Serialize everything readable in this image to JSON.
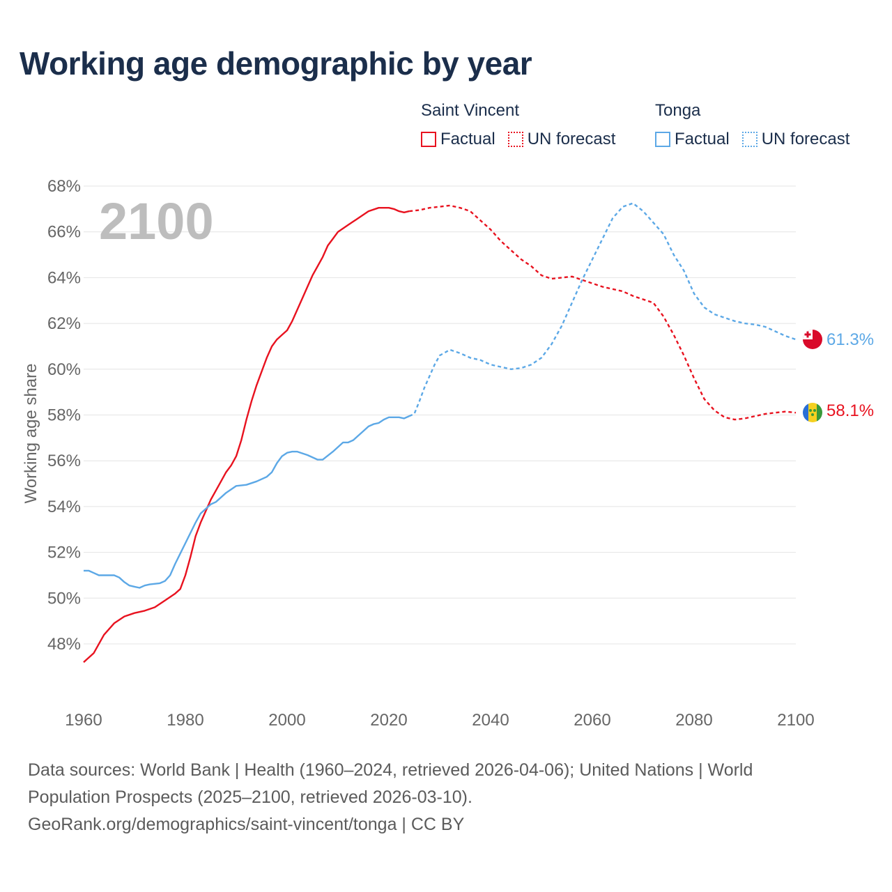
{
  "title": "Working age demographic by year",
  "legend": {
    "groups": [
      {
        "name": "Saint Vincent",
        "color": "#e8121f",
        "factual_label": "Factual",
        "forecast_label": "UN forecast"
      },
      {
        "name": "Tonga",
        "color": "#5ca8e6",
        "factual_label": "Factual",
        "forecast_label": "UN forecast"
      }
    ]
  },
  "year_display": "2100",
  "end_labels": {
    "tonga": "61.3%",
    "saint_vincent": "58.1%"
  },
  "sources": {
    "line1": "Data sources: World Bank | Health (1960–2024, retrieved 2026-04-06); United Nations | World",
    "line2": "Population Prospects (2025–2100, retrieved 2026-03-10).",
    "line3": "GeoRank.org/demographics/saint-vincent/tonga | CC BY"
  },
  "chart_data": {
    "type": "line",
    "title": "Working age demographic by year",
    "xlabel": "",
    "ylabel": "Working age share",
    "xlim": [
      1960,
      2100
    ],
    "ylim": [
      46.5,
      68
    ],
    "x_ticks": [
      1960,
      1980,
      2000,
      2020,
      2040,
      2060,
      2080,
      2100
    ],
    "y_ticks": [
      48,
      50,
      52,
      54,
      56,
      58,
      60,
      62,
      64,
      66,
      68
    ],
    "y_tick_labels": [
      "48%",
      "50%",
      "52%",
      "54%",
      "56%",
      "58%",
      "60%",
      "62%",
      "64%",
      "66%",
      "68%"
    ],
    "x_tick_labels": [
      "1960",
      "1980",
      "2000",
      "2020",
      "2040",
      "2060",
      "2080",
      "2100"
    ],
    "grid": true,
    "forecast_start": 2025,
    "series": [
      {
        "name": "Saint Vincent",
        "color": "#e8121f",
        "points": [
          [
            1960,
            47.2
          ],
          [
            1962,
            47.6
          ],
          [
            1964,
            48.4
          ],
          [
            1966,
            48.9
          ],
          [
            1968,
            49.2
          ],
          [
            1970,
            49.35
          ],
          [
            1972,
            49.45
          ],
          [
            1974,
            49.6
          ],
          [
            1976,
            49.9
          ],
          [
            1978,
            50.2
          ],
          [
            1979,
            50.4
          ],
          [
            1980,
            51.0
          ],
          [
            1981,
            51.8
          ],
          [
            1982,
            52.7
          ],
          [
            1983,
            53.3
          ],
          [
            1984,
            53.8
          ],
          [
            1985,
            54.3
          ],
          [
            1986,
            54.7
          ],
          [
            1987,
            55.1
          ],
          [
            1988,
            55.5
          ],
          [
            1989,
            55.8
          ],
          [
            1990,
            56.2
          ],
          [
            1991,
            56.9
          ],
          [
            1992,
            57.8
          ],
          [
            1993,
            58.6
          ],
          [
            1994,
            59.3
          ],
          [
            1995,
            59.9
          ],
          [
            1996,
            60.5
          ],
          [
            1997,
            61.0
          ],
          [
            1998,
            61.3
          ],
          [
            1999,
            61.5
          ],
          [
            2000,
            61.7
          ],
          [
            2001,
            62.1
          ],
          [
            2002,
            62.6
          ],
          [
            2003,
            63.1
          ],
          [
            2004,
            63.6
          ],
          [
            2005,
            64.1
          ],
          [
            2006,
            64.5
          ],
          [
            2007,
            64.9
          ],
          [
            2008,
            65.4
          ],
          [
            2009,
            65.7
          ],
          [
            2010,
            66.0
          ],
          [
            2012,
            66.3
          ],
          [
            2014,
            66.6
          ],
          [
            2016,
            66.9
          ],
          [
            2018,
            67.05
          ],
          [
            2020,
            67.05
          ],
          [
            2021,
            67.0
          ],
          [
            2022,
            66.9
          ],
          [
            2023,
            66.85
          ],
          [
            2024,
            66.9
          ],
          [
            2026,
            66.95
          ],
          [
            2028,
            67.05
          ],
          [
            2030,
            67.1
          ],
          [
            2032,
            67.15
          ],
          [
            2034,
            67.05
          ],
          [
            2036,
            66.9
          ],
          [
            2038,
            66.5
          ],
          [
            2040,
            66.1
          ],
          [
            2042,
            65.6
          ],
          [
            2044,
            65.2
          ],
          [
            2046,
            64.8
          ],
          [
            2048,
            64.5
          ],
          [
            2050,
            64.1
          ],
          [
            2052,
            63.95
          ],
          [
            2054,
            64.0
          ],
          [
            2056,
            64.05
          ],
          [
            2058,
            63.9
          ],
          [
            2060,
            63.75
          ],
          [
            2062,
            63.6
          ],
          [
            2064,
            63.5
          ],
          [
            2066,
            63.4
          ],
          [
            2068,
            63.2
          ],
          [
            2070,
            63.05
          ],
          [
            2072,
            62.9
          ],
          [
            2074,
            62.3
          ],
          [
            2076,
            61.5
          ],
          [
            2078,
            60.6
          ],
          [
            2080,
            59.6
          ],
          [
            2082,
            58.7
          ],
          [
            2084,
            58.2
          ],
          [
            2086,
            57.9
          ],
          [
            2088,
            57.8
          ],
          [
            2090,
            57.85
          ],
          [
            2092,
            57.95
          ],
          [
            2094,
            58.05
          ],
          [
            2096,
            58.1
          ],
          [
            2098,
            58.15
          ],
          [
            2100,
            58.1
          ]
        ]
      },
      {
        "name": "Tonga",
        "color": "#5ca8e6",
        "points": [
          [
            1960,
            51.2
          ],
          [
            1961,
            51.2
          ],
          [
            1962,
            51.1
          ],
          [
            1963,
            51.0
          ],
          [
            1965,
            51.0
          ],
          [
            1966,
            51.0
          ],
          [
            1967,
            50.9
          ],
          [
            1968,
            50.7
          ],
          [
            1969,
            50.55
          ],
          [
            1970,
            50.5
          ],
          [
            1971,
            50.45
          ],
          [
            1972,
            50.55
          ],
          [
            1973,
            50.6
          ],
          [
            1975,
            50.65
          ],
          [
            1976,
            50.75
          ],
          [
            1977,
            51.0
          ],
          [
            1978,
            51.5
          ],
          [
            1980,
            52.4
          ],
          [
            1982,
            53.3
          ],
          [
            1983,
            53.7
          ],
          [
            1985,
            54.1
          ],
          [
            1986,
            54.2
          ],
          [
            1988,
            54.6
          ],
          [
            1990,
            54.9
          ],
          [
            1992,
            54.95
          ],
          [
            1994,
            55.1
          ],
          [
            1996,
            55.3
          ],
          [
            1997,
            55.5
          ],
          [
            1998,
            55.9
          ],
          [
            1999,
            56.2
          ],
          [
            2000,
            56.35
          ],
          [
            2001,
            56.4
          ],
          [
            2002,
            56.4
          ],
          [
            2004,
            56.25
          ],
          [
            2006,
            56.05
          ],
          [
            2007,
            56.05
          ],
          [
            2009,
            56.4
          ],
          [
            2011,
            56.8
          ],
          [
            2012,
            56.8
          ],
          [
            2013,
            56.9
          ],
          [
            2015,
            57.3
          ],
          [
            2016,
            57.5
          ],
          [
            2017,
            57.6
          ],
          [
            2018,
            57.65
          ],
          [
            2019,
            57.8
          ],
          [
            2020,
            57.9
          ],
          [
            2022,
            57.9
          ],
          [
            2023,
            57.85
          ],
          [
            2024,
            57.95
          ],
          [
            2025,
            58.05
          ],
          [
            2026,
            58.6
          ],
          [
            2027,
            59.2
          ],
          [
            2028,
            59.7
          ],
          [
            2029,
            60.2
          ],
          [
            2030,
            60.6
          ],
          [
            2032,
            60.85
          ],
          [
            2034,
            60.7
          ],
          [
            2036,
            60.5
          ],
          [
            2038,
            60.4
          ],
          [
            2040,
            60.2
          ],
          [
            2042,
            60.1
          ],
          [
            2044,
            60.0
          ],
          [
            2046,
            60.05
          ],
          [
            2048,
            60.2
          ],
          [
            2050,
            60.5
          ],
          [
            2052,
            61.1
          ],
          [
            2054,
            61.9
          ],
          [
            2056,
            62.9
          ],
          [
            2058,
            63.9
          ],
          [
            2060,
            64.8
          ],
          [
            2062,
            65.7
          ],
          [
            2064,
            66.6
          ],
          [
            2066,
            67.1
          ],
          [
            2068,
            67.25
          ],
          [
            2070,
            66.9
          ],
          [
            2072,
            66.4
          ],
          [
            2074,
            65.9
          ],
          [
            2076,
            65.0
          ],
          [
            2078,
            64.3
          ],
          [
            2080,
            63.3
          ],
          [
            2082,
            62.7
          ],
          [
            2084,
            62.4
          ],
          [
            2086,
            62.25
          ],
          [
            2088,
            62.1
          ],
          [
            2090,
            62.0
          ],
          [
            2092,
            61.95
          ],
          [
            2094,
            61.85
          ],
          [
            2096,
            61.65
          ],
          [
            2098,
            61.45
          ],
          [
            2100,
            61.3
          ]
        ]
      }
    ]
  }
}
